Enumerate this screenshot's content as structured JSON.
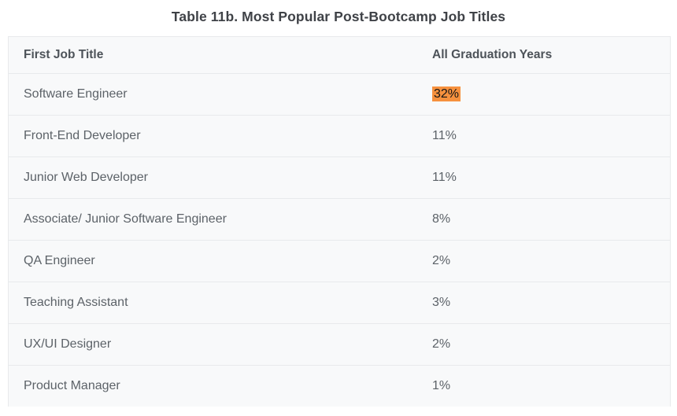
{
  "title": "Table 11b. Most Popular Post-Bootcamp Job Titles",
  "table": {
    "headers": [
      "First Job Title",
      "All Graduation Years"
    ],
    "rows": [
      {
        "job_title": "Software Engineer",
        "value": "32%",
        "highlighted": true
      },
      {
        "job_title": "Front-End Developer",
        "value": "11%",
        "highlighted": false
      },
      {
        "job_title": "Junior Web Developer",
        "value": "11%",
        "highlighted": false
      },
      {
        "job_title": "Associate/ Junior Software Engineer",
        "value": "8%",
        "highlighted": false
      },
      {
        "job_title": "QA Engineer",
        "value": "2%",
        "highlighted": false
      },
      {
        "job_title": "Teaching Assistant",
        "value": "3%",
        "highlighted": false
      },
      {
        "job_title": "UX/UI Designer",
        "value": "2%",
        "highlighted": false
      },
      {
        "job_title": "Product Manager",
        "value": "1%",
        "highlighted": false
      }
    ]
  },
  "colors": {
    "highlight": "#f6913e",
    "table_background": "#f8f9fa",
    "border": "#e8eaec",
    "title_text": "#3f4247",
    "header_text": "#4d5359",
    "cell_text": "#5c6268"
  },
  "chart_data": {
    "type": "table",
    "title": "Table 11b. Most Popular Post-Bootcamp Job Titles",
    "columns": [
      "First Job Title",
      "All Graduation Years"
    ],
    "categories": [
      "Software Engineer",
      "Front-End Developer",
      "Junior Web Developer",
      "Associate/ Junior Software Engineer",
      "QA Engineer",
      "Teaching Assistant",
      "UX/UI Designer",
      "Product Manager"
    ],
    "values": [
      32,
      11,
      11,
      8,
      2,
      3,
      2,
      1
    ],
    "value_unit": "%",
    "highlighted_cell": {
      "row": "Software Engineer",
      "value": "32%"
    }
  }
}
